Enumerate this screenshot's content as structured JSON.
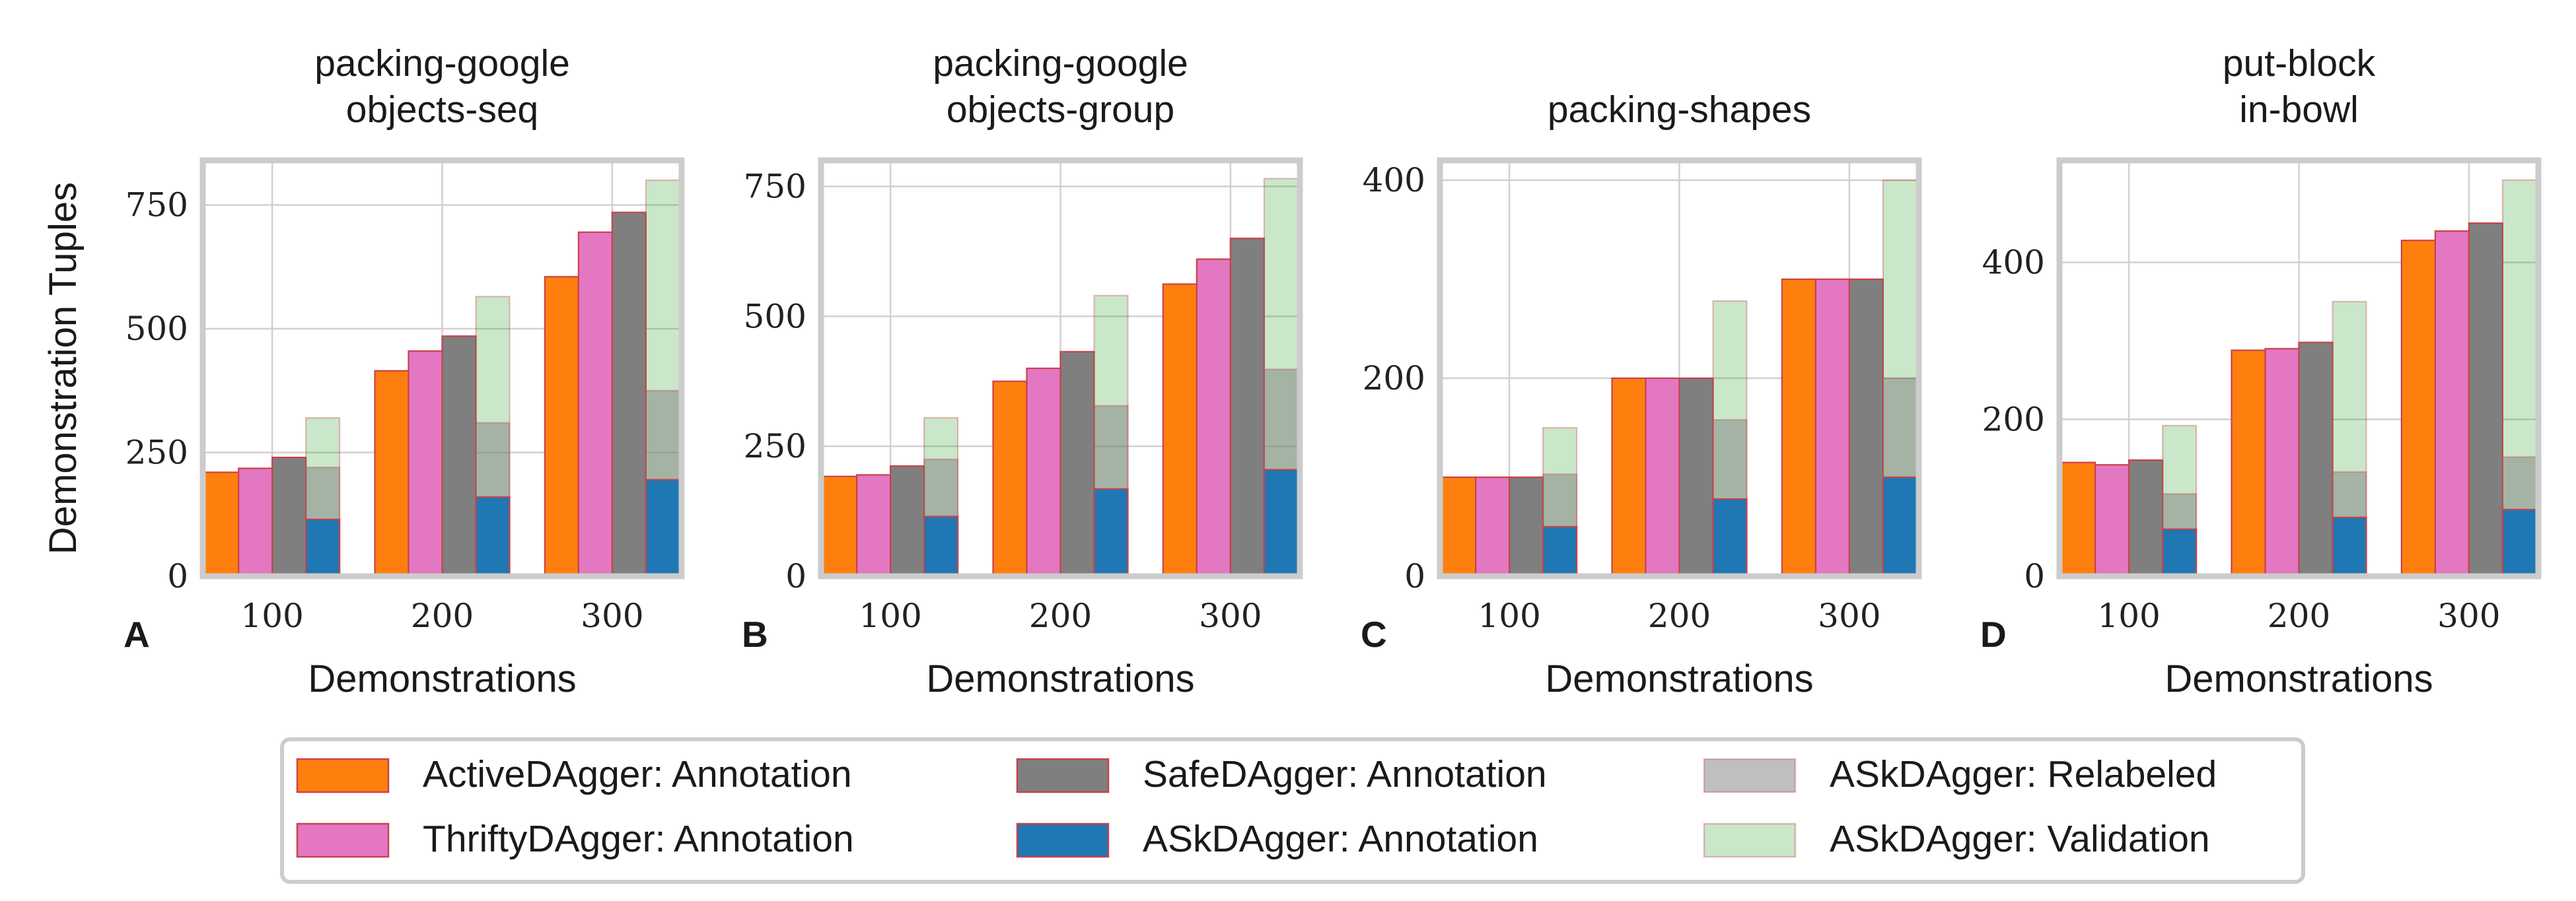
{
  "chart_data": [
    {
      "panel_letter": "A",
      "type": "bar",
      "title_lines": [
        "packing-google",
        "objects-seq"
      ],
      "xlabel": "Demonstrations",
      "ylabel": "Demonstration Tuples",
      "categories": [
        "100",
        "200",
        "300"
      ],
      "ylim": [
        0,
        840
      ],
      "yticks": [
        0,
        250,
        500,
        750
      ],
      "series": [
        {
          "name": "ActiveDAgger: Annotation",
          "values": [
            210,
            415,
            605
          ]
        },
        {
          "name": "ThriftyDAgger: Annotation",
          "values": [
            218,
            455,
            695
          ]
        },
        {
          "name": "SafeDAgger: Annotation",
          "values": [
            240,
            485,
            735
          ]
        },
        {
          "name": "ASkDAgger: Validation",
          "values": [
            320,
            565,
            800
          ]
        },
        {
          "name": "ASkDAgger: Relabeled",
          "values": [
            220,
            310,
            375
          ]
        },
        {
          "name": "ASkDAgger: Annotation",
          "values": [
            115,
            160,
            195
          ]
        }
      ]
    },
    {
      "panel_letter": "B",
      "type": "bar",
      "title_lines": [
        "packing-google",
        "objects-group"
      ],
      "xlabel": "Demonstrations",
      "ylabel": "",
      "categories": [
        "100",
        "200",
        "300"
      ],
      "ylim": [
        0,
        800
      ],
      "yticks": [
        0,
        250,
        500,
        750
      ],
      "series": [
        {
          "name": "ActiveDAgger: Annotation",
          "values": [
            192,
            375,
            562
          ]
        },
        {
          "name": "ThriftyDAgger: Annotation",
          "values": [
            195,
            400,
            610
          ]
        },
        {
          "name": "SafeDAgger: Annotation",
          "values": [
            212,
            432,
            650
          ]
        },
        {
          "name": "ASkDAgger: Validation",
          "values": [
            305,
            540,
            765
          ]
        },
        {
          "name": "ASkDAgger: Relabeled",
          "values": [
            225,
            328,
            398
          ]
        },
        {
          "name": "ASkDAgger: Annotation",
          "values": [
            115,
            168,
            205
          ]
        }
      ]
    },
    {
      "panel_letter": "C",
      "type": "bar",
      "title_lines": [
        "packing-shapes"
      ],
      "xlabel": "Demonstrations",
      "ylabel": "",
      "categories": [
        "100",
        "200",
        "300"
      ],
      "ylim": [
        0,
        420
      ],
      "yticks": [
        0,
        200,
        400
      ],
      "series": [
        {
          "name": "ActiveDAgger: Annotation",
          "values": [
            100,
            200,
            300
          ]
        },
        {
          "name": "ThriftyDAgger: Annotation",
          "values": [
            100,
            200,
            300
          ]
        },
        {
          "name": "SafeDAgger: Annotation",
          "values": [
            100,
            200,
            300
          ]
        },
        {
          "name": "ASkDAgger: Validation",
          "values": [
            150,
            278,
            400
          ]
        },
        {
          "name": "ASkDAgger: Relabeled",
          "values": [
            103,
            158,
            200
          ]
        },
        {
          "name": "ASkDAgger: Annotation",
          "values": [
            50,
            78,
            100
          ]
        }
      ]
    },
    {
      "panel_letter": "D",
      "type": "bar",
      "title_lines": [
        "put-block",
        "in-bowl"
      ],
      "xlabel": "Demonstrations",
      "ylabel": "",
      "categories": [
        "100",
        "200",
        "300"
      ],
      "ylim": [
        0,
        530
      ],
      "yticks": [
        0,
        200,
        400
      ],
      "series": [
        {
          "name": "ActiveDAgger: Annotation",
          "values": [
            145,
            288,
            428
          ]
        },
        {
          "name": "ThriftyDAgger: Annotation",
          "values": [
            142,
            290,
            440
          ]
        },
        {
          "name": "SafeDAgger: Annotation",
          "values": [
            148,
            298,
            450
          ]
        },
        {
          "name": "ASkDAgger: Validation",
          "values": [
            192,
            350,
            505
          ]
        },
        {
          "name": "ASkDAgger: Relabeled",
          "values": [
            105,
            133,
            152
          ]
        },
        {
          "name": "ASkDAgger: Annotation",
          "values": [
            60,
            75,
            85
          ]
        }
      ]
    }
  ],
  "legend": {
    "placement": "bottom-center",
    "entries": [
      {
        "label": "ActiveDAgger: Annotation",
        "color": "#ff7f0e",
        "alpha": 1
      },
      {
        "label": "ThriftyDAgger: Annotation",
        "color": "#e377c2",
        "alpha": 1
      },
      {
        "label": "SafeDAgger: Annotation",
        "color": "#7f7f7f",
        "alpha": 1
      },
      {
        "label": "ASkDAgger: Annotation",
        "color": "#1f77b4",
        "alpha": 1
      },
      {
        "label": "ASkDAgger: Relabeled",
        "color": "#7f7f7f",
        "alpha": 0.5
      },
      {
        "label": "ASkDAgger: Validation",
        "color": "#2ca02c",
        "alpha": 0.25
      }
    ]
  },
  "colors": {
    "ActiveDAgger": "#ff7f0e",
    "ThriftyDAgger": "#e377c2",
    "SafeDAgger": "#7f7f7f",
    "ASkDAgger_annotation": "#1f77b4",
    "ASkDAgger_relabeled": "#7f7f7f",
    "ASkDAgger_validation": "#2ca02c",
    "bar_edge": "#c8424b",
    "frame": "#cccccc",
    "grid": "#d0d0d0"
  }
}
